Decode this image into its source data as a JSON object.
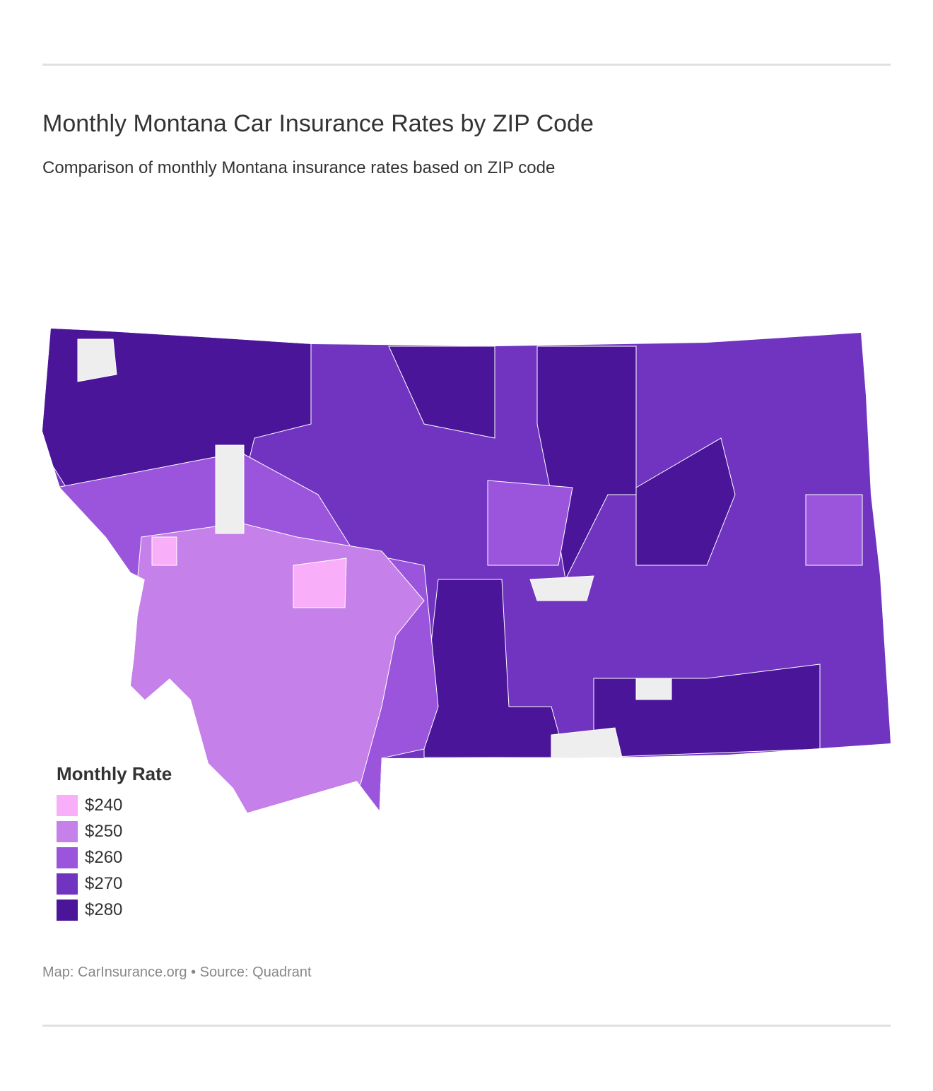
{
  "title": "Monthly Montana Car Insurance Rates by ZIP Code",
  "subtitle": "Comparison of monthly Montana insurance rates based on ZIP code",
  "legend": {
    "title": "Monthly Rate",
    "items": [
      {
        "label": "$240",
        "color": "#f9aefa"
      },
      {
        "label": "$250",
        "color": "#c680e9"
      },
      {
        "label": "$260",
        "color": "#9a55dc"
      },
      {
        "label": "$270",
        "color": "#7134c0"
      },
      {
        "label": "$280",
        "color": "#4a1598"
      }
    ]
  },
  "no_data_color": "#eeeeee",
  "footer": "Map: CarInsurance.org • Source: Quadrant"
}
